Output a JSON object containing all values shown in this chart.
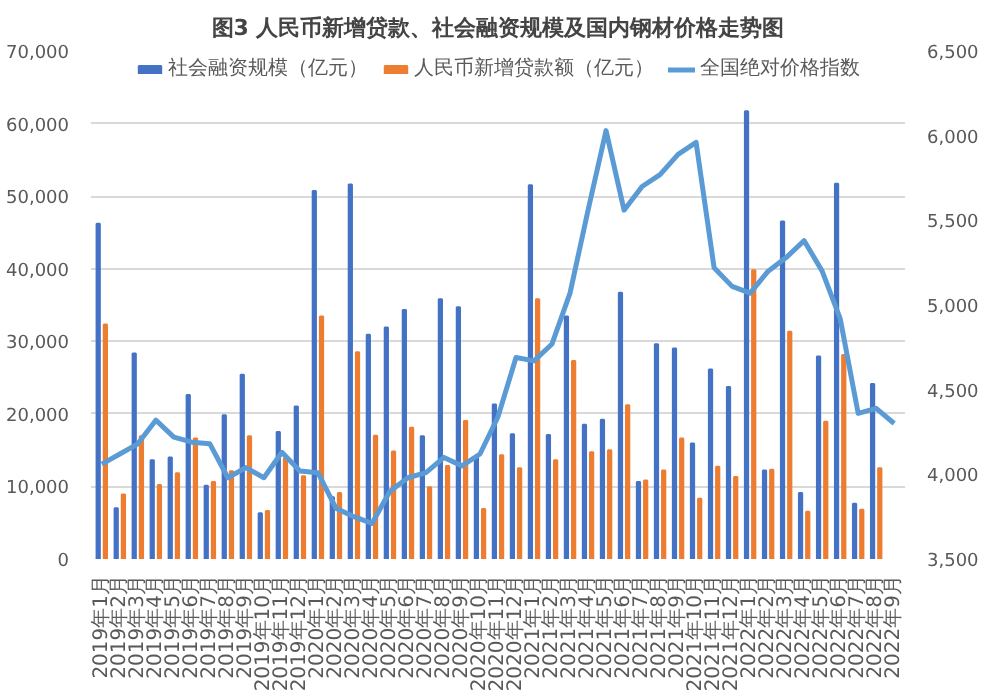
{
  "chart_data": {
    "type": "bar",
    "title": "图3 人民币新增贷款、社会融资规模及国内钢材价格走势图",
    "categories": [
      "2019年1月",
      "2019年2月",
      "2019年3月",
      "2019年4月",
      "2019年5月",
      "2019年6月",
      "2019年7月",
      "2019年8月",
      "2019年9月",
      "2019年10月",
      "2019年11月",
      "2019年12月",
      "2020年1月",
      "2020年2月",
      "2020年3月",
      "2020年4月",
      "2020年5月",
      "2020年6月",
      "2020年7月",
      "2020年8月",
      "2020年9月",
      "2020年10月",
      "2020年11月",
      "2020年12月",
      "2021年1月",
      "2021年2月",
      "2021年3月",
      "2021年4月",
      "2021年5月",
      "2021年6月",
      "2021年7月",
      "2021年8月",
      "2021年9月",
      "2021年10月",
      "2021年11月",
      "2021年12月",
      "2022年1月",
      "2022年2月",
      "2022年3月",
      "2022年4月",
      "2022年5月",
      "2022年6月",
      "2022年7月",
      "2022年8月",
      "2022年9月"
    ],
    "series": [
      {
        "name": "社会融资规模（亿元）",
        "color": "#4472c4",
        "values": [
          46200,
          7000,
          28300,
          13600,
          14000,
          22600,
          10100,
          19800,
          25400,
          6300,
          17500,
          21000,
          50700,
          8500,
          51600,
          30900,
          31900,
          34300,
          16900,
          35800,
          34700,
          14000,
          21300,
          17200,
          51500,
          17100,
          33400,
          18500,
          19200,
          36700,
          10600,
          29600,
          29000,
          15900,
          26100,
          23700,
          61700,
          12200,
          46500,
          9100,
          27900,
          51700,
          7600,
          24100,
          null
        ]
      },
      {
        "name": "人民币新增贷款额（亿元）",
        "color": "#ed7d31",
        "values": [
          32300,
          8900,
          16900,
          10200,
          11800,
          16600,
          10600,
          12100,
          16900,
          6600,
          13900,
          11400,
          33400,
          9100,
          28500,
          17000,
          14800,
          18100,
          9900,
          12800,
          19000,
          6900,
          14300,
          12500,
          35800,
          13600,
          27300,
          14700,
          15000,
          21200,
          10800,
          12200,
          16600,
          8300,
          12700,
          11300,
          39800,
          12300,
          31300,
          6500,
          18900,
          28100,
          6800,
          12500,
          null
        ]
      },
      {
        "name": "全国绝对价格指数",
        "color": "#5b9bd5",
        "type": "line",
        "axis": "y2",
        "values": [
          4060,
          4120,
          4180,
          4320,
          4220,
          4190,
          4180,
          3980,
          4040,
          3980,
          4130,
          4020,
          4010,
          3800,
          3750,
          3710,
          3900,
          3980,
          4010,
          4100,
          4050,
          4120,
          4340,
          4690,
          4670,
          4770,
          5070,
          5560,
          6030,
          5560,
          5700,
          5770,
          5890,
          5960,
          5220,
          5110,
          5070,
          5200,
          5280,
          5380,
          5200,
          4920,
          4360,
          4390,
          4300
        ]
      }
    ],
    "ylim": [
      0,
      70000
    ],
    "yticks": [
      0,
      {
        "value": 10000,
        "label": "10,000"
      },
      {
        "value": 20000,
        "label": "20,000"
      },
      {
        "value": 30000,
        "label": "30,000"
      },
      {
        "value": 40000,
        "label": "40,000"
      },
      {
        "value": 50000,
        "label": "50,000"
      },
      {
        "value": 60000,
        "label": "60,000"
      },
      {
        "value": 70000,
        "label": "70,000"
      }
    ],
    "y2lim": [
      3500,
      6500
    ],
    "y2ticks": [
      {
        "value": 3500,
        "label": "3,500"
      },
      {
        "value": 4000,
        "label": "4,000"
      },
      {
        "value": 4500,
        "label": "4,500"
      },
      {
        "value": 5000,
        "label": "5,000"
      },
      {
        "value": 5500,
        "label": "5,500"
      },
      {
        "value": 6000,
        "label": "6,000"
      },
      {
        "value": 6500,
        "label": "6,500"
      }
    ],
    "grid": "y",
    "legend": "top",
    "marker": "none",
    "line_style": "solid"
  }
}
